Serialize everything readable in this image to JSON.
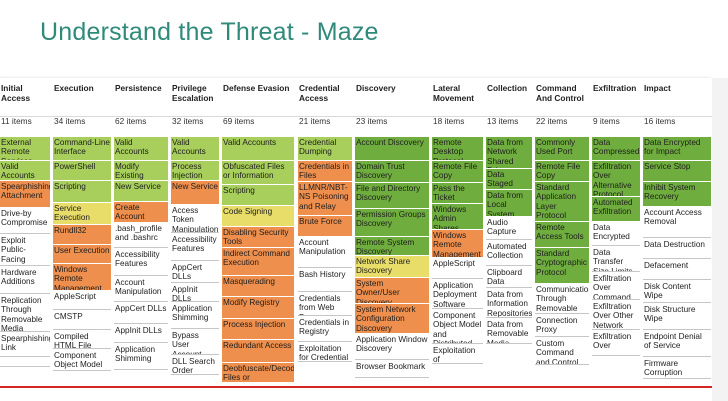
{
  "title": "Understand the Threat - Maze",
  "columns": [
    {
      "name": "Initial Access",
      "count": "11 items",
      "cells": [
        {
          "t": "External Remote Services",
          "c": "g2"
        },
        {
          "t": "Valid Accounts",
          "c": "g2"
        },
        {
          "t": "Spearphishing Attachment",
          "c": "o"
        },
        {
          "t": "Drive-by Compromise",
          "c": "w"
        },
        {
          "t": "Exploit Public-Facing Application",
          "c": "w"
        },
        {
          "t": "Hardware Additions",
          "c": "w"
        },
        {
          "t": "Replication Through Removable Media",
          "c": "w"
        },
        {
          "t": "Spearphishing Link",
          "c": "w"
        },
        {
          "t": "",
          "c": "w"
        }
      ]
    },
    {
      "name": "Execution",
      "count": "34 items",
      "cells": [
        {
          "t": "Command-Line Interface",
          "c": "g2"
        },
        {
          "t": "PowerShell",
          "c": "g2"
        },
        {
          "t": "Scripting",
          "c": "g2"
        },
        {
          "t": "Service Execution",
          "c": "y"
        },
        {
          "t": "Rundll32",
          "c": "o"
        },
        {
          "t": "User Execution",
          "c": "o"
        },
        {
          "t": "Windows Remote Management",
          "c": "o"
        },
        {
          "t": "AppleScript",
          "c": "w"
        },
        {
          "t": "CMSTP",
          "c": "w"
        },
        {
          "t": "Compiled HTML File",
          "c": "w"
        },
        {
          "t": "Component Object Model and",
          "c": "w"
        }
      ]
    },
    {
      "name": "Persistence",
      "count": "62 items",
      "cells": [
        {
          "t": "Valid Accounts",
          "c": "g2"
        },
        {
          "t": "Modify Existing Service",
          "c": "g2"
        },
        {
          "t": "New Service",
          "c": "g2"
        },
        {
          "t": "Create Account",
          "c": "o"
        },
        {
          "t": ".bash_profile and .bashrc",
          "c": "w"
        },
        {
          "t": "Accessibility Features",
          "c": "w"
        },
        {
          "t": "Account Manipulation",
          "c": "w"
        },
        {
          "t": "AppCert DLLs",
          "c": "w"
        },
        {
          "t": "AppInit DLLs",
          "c": "w"
        },
        {
          "t": "Application Shimming",
          "c": "w"
        }
      ]
    },
    {
      "name": "Privilege Escalation",
      "count": "32 items",
      "cells": [
        {
          "t": "Valid Accounts",
          "c": "g2"
        },
        {
          "t": "Process Injection",
          "c": "g2"
        },
        {
          "t": "New Service",
          "c": "o"
        },
        {
          "t": "Access Token Manipulation",
          "c": "w"
        },
        {
          "t": "Accessibility Features",
          "c": "w"
        },
        {
          "t": "AppCert DLLs",
          "c": "w"
        },
        {
          "t": "AppInit DLLs",
          "c": "w"
        },
        {
          "t": "Application Shimming",
          "c": "w"
        },
        {
          "t": "Bypass User Account Control",
          "c": "w"
        },
        {
          "t": "DLL Search Order Hijacking",
          "c": "w"
        }
      ]
    },
    {
      "name": "Defense Evasion",
      "count": "69 items",
      "cells": [
        {
          "t": "Valid Accounts",
          "c": "g2"
        },
        {
          "t": "Obfuscated Files or Information",
          "c": "g2"
        },
        {
          "t": "Scripting",
          "c": "g2"
        },
        {
          "t": "Code Signing",
          "c": "y"
        },
        {
          "t": "Disabling Security Tools",
          "c": "o"
        },
        {
          "t": "Indirect Command Execution",
          "c": "o"
        },
        {
          "t": "Masquerading",
          "c": "o"
        },
        {
          "t": "Modify Registry",
          "c": "o"
        },
        {
          "t": "Process Injection",
          "c": "o"
        },
        {
          "t": "Redundant Access",
          "c": "o"
        },
        {
          "t": "Deobfuscate/Decode Files or Information",
          "c": "o"
        }
      ]
    },
    {
      "name": "Credential Access",
      "count": "21 items",
      "cells": [
        {
          "t": "Credential Dumping",
          "c": "g2"
        },
        {
          "t": "Credentials in Files",
          "c": "o"
        },
        {
          "t": "LLMNR/NBT-NS Poisoning and Relay",
          "c": "o"
        },
        {
          "t": "Brute Force",
          "c": "o"
        },
        {
          "t": "Account Manipulation",
          "c": "w"
        },
        {
          "t": "Bash History",
          "c": "w"
        },
        {
          "t": "Credentials from Web Browsers",
          "c": "w"
        },
        {
          "t": "Credentials in Registry",
          "c": "w"
        },
        {
          "t": "Exploitation for Credential Access",
          "c": "w"
        }
      ]
    },
    {
      "name": "Discovery",
      "count": "23 items",
      "cells": [
        {
          "t": "Account Discovery",
          "c": "g1"
        },
        {
          "t": "Domain Trust Discovery",
          "c": "g1"
        },
        {
          "t": "File and Directory Discovery",
          "c": "g1"
        },
        {
          "t": "Permission Groups Discovery",
          "c": "g1"
        },
        {
          "t": "Remote System Discovery",
          "c": "g1"
        },
        {
          "t": "Network Share Discovery",
          "c": "y"
        },
        {
          "t": "System Owner/User Discovery",
          "c": "o"
        },
        {
          "t": "System Network Configuration Discovery",
          "c": "o"
        },
        {
          "t": "Application Window Discovery",
          "c": "w"
        },
        {
          "t": "Browser Bookmark",
          "c": "w"
        }
      ]
    },
    {
      "name": "Lateral Movement",
      "count": "18 items",
      "cells": [
        {
          "t": "Remote Desktop Protocol",
          "c": "g1"
        },
        {
          "t": "Remote File Copy",
          "c": "g1"
        },
        {
          "t": "Pass the Ticket",
          "c": "g1"
        },
        {
          "t": "Windows Admin Shares",
          "c": "g1"
        },
        {
          "t": "Windows Remote Management",
          "c": "o"
        },
        {
          "t": "AppleScript",
          "c": "w"
        },
        {
          "t": "Application Deployment Software",
          "c": "w"
        },
        {
          "t": "Component Object Model and Distributed COM",
          "c": "w"
        },
        {
          "t": "Exploitation of",
          "c": "w"
        }
      ]
    },
    {
      "name": "Collection",
      "count": "13 items",
      "cells": [
        {
          "t": "Data from Network Shared Drive",
          "c": "g1"
        },
        {
          "t": "Data Staged",
          "c": "g1"
        },
        {
          "t": "Data from Local System",
          "c": "g1"
        },
        {
          "t": "Audio Capture",
          "c": "w"
        },
        {
          "t": "Automated Collection",
          "c": "w"
        },
        {
          "t": "Clipboard Data",
          "c": "w"
        },
        {
          "t": "Data from Information Repositories",
          "c": "w"
        },
        {
          "t": "Data from Removable Media",
          "c": "w"
        }
      ]
    },
    {
      "name": "Command And Control",
      "count": "22 items",
      "cells": [
        {
          "t": "Commonly Used Port",
          "c": "g1"
        },
        {
          "t": "Remote File Copy",
          "c": "g1"
        },
        {
          "t": "Standard Application Layer Protocol",
          "c": "g1"
        },
        {
          "t": "Remote Access Tools",
          "c": "g1"
        },
        {
          "t": "Standard Cryptographic Protocol",
          "c": "g1"
        },
        {
          "t": "Communication Through Removable Media",
          "c": "w"
        },
        {
          "t": "Connection Proxy",
          "c": "w"
        },
        {
          "t": "Custom Command and Control",
          "c": "w"
        }
      ]
    },
    {
      "name": "Exfiltration",
      "count": "9 items",
      "cells": [
        {
          "t": "Data Compressed",
          "c": "g1"
        },
        {
          "t": "Exfiltration Over Alternative Protocol",
          "c": "g1"
        },
        {
          "t": "Automated Exfiltration",
          "c": "g1"
        },
        {
          "t": "Data Encrypted",
          "c": "w"
        },
        {
          "t": "Data Transfer Size Limits",
          "c": "w"
        },
        {
          "t": "Exfiltration Over Command and Control Channel",
          "c": "w"
        },
        {
          "t": "Exfiltration Over Other Network Medium",
          "c": "w"
        },
        {
          "t": "Exfiltration Over",
          "c": "w"
        }
      ]
    },
    {
      "name": "Impact",
      "count": "16 items",
      "cells": [
        {
          "t": "Data Encrypted for Impact",
          "c": "g1"
        },
        {
          "t": "Service Stop",
          "c": "g1"
        },
        {
          "t": "Inhibit System Recovery",
          "c": "g1"
        },
        {
          "t": "Account Access Removal",
          "c": "w"
        },
        {
          "t": "Data Destruction",
          "c": "w"
        },
        {
          "t": "Defacement",
          "c": "w"
        },
        {
          "t": "Disk Content Wipe",
          "c": "w"
        },
        {
          "t": "Disk Structure Wipe",
          "c": "w"
        },
        {
          "t": "Endpoint Denial of Service",
          "c": "w"
        },
        {
          "t": "Firmware Corruption",
          "c": "w"
        }
      ]
    }
  ],
  "colors": {
    "green_dark": "#6fae3e",
    "green_light": "#a8cf5c",
    "yellow": "#e9dd6a",
    "orange": "#ee8f4d",
    "title": "#2f8a7a",
    "red_line": "#d62424"
  }
}
